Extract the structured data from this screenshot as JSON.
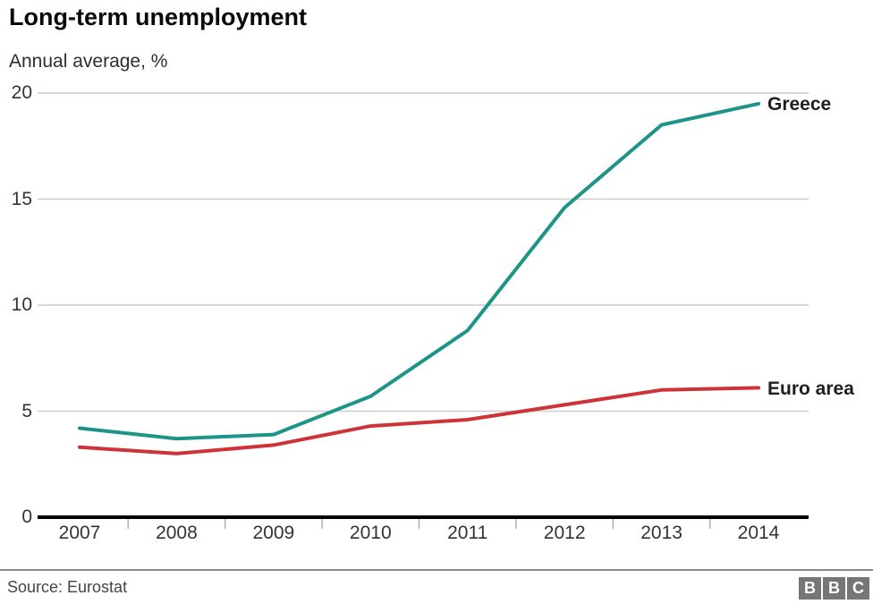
{
  "header": {
    "title": "Long-term unemployment",
    "subtitle": "Annual average, %"
  },
  "footer": {
    "source": "Source: Eurostat",
    "logo_letters": [
      "B",
      "B",
      "C"
    ]
  },
  "colors": {
    "greece_line": "#1e9488",
    "euro_line": "#cd3338",
    "gridline": "#cccccc",
    "axis": "#000000",
    "tick": "#b0b0b0",
    "text_dark": "#333333",
    "footer_rule": "#8a8a8a",
    "logo_gray": "#767676"
  },
  "chart_data": {
    "type": "line",
    "title": "Long-term unemployment",
    "subtitle": "Annual average, %",
    "xlabel": "",
    "ylabel": "Annual average, %",
    "categories": [
      "2007",
      "2008",
      "2009",
      "2010",
      "2011",
      "2012",
      "2013",
      "2014"
    ],
    "series": [
      {
        "name": "Greece",
        "color": "#1e9488",
        "values": [
          4.2,
          3.7,
          3.9,
          5.7,
          8.8,
          14.6,
          18.5,
          19.5
        ]
      },
      {
        "name": "Euro area",
        "color": "#cd3338",
        "values": [
          3.3,
          3.0,
          3.4,
          4.3,
          4.6,
          5.3,
          6.0,
          6.1
        ]
      }
    ],
    "ylim": [
      0,
      20
    ],
    "yticks": [
      0,
      5,
      10,
      15,
      20
    ],
    "grid": true,
    "legend_position": "end-of-line-labels"
  }
}
